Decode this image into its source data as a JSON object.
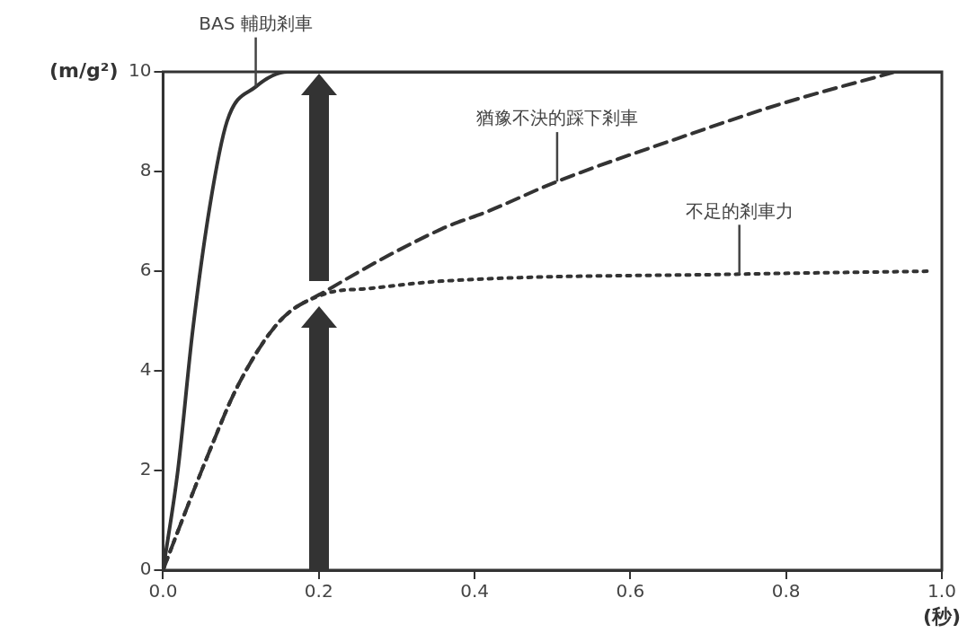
{
  "chart_data": {
    "type": "line",
    "xlabel": "(秒)",
    "ylabel": "(m/g²)",
    "xlim": [
      0,
      1
    ],
    "xticks": [
      {
        "value": 0,
        "label": "0.0"
      },
      {
        "value": 0.2,
        "label": "0.2"
      },
      {
        "value": 0.4,
        "label": "0.4"
      },
      {
        "value": 0.6,
        "label": "0.6"
      },
      {
        "value": 0.8,
        "label": "0.8"
      },
      {
        "value": 1,
        "label": "1.0"
      }
    ],
    "ylim": [
      0,
      10
    ],
    "yticks": [
      0,
      2,
      4,
      6,
      8,
      10
    ],
    "grid": false,
    "legend": false,
    "marker": "none",
    "series": [
      {
        "color": "#333333",
        "line_style": "solid",
        "x": [
          0,
          0.019,
          0.038,
          0.06,
          0.082,
          0.119,
          0.16,
          0.2,
          1
        ],
        "values": [
          0,
          2.0,
          4.8,
          7.3,
          9.0,
          9.7,
          10.0,
          10,
          10
        ]
      },
      {
        "color": "#333333",
        "line_style": "dashed",
        "x": [
          0,
          0.006,
          0.06,
          0.096,
          0.15,
          0.209,
          0.358,
          0.417,
          0.506,
          0.662,
          0.792,
          0.94
        ],
        "values": [
          0,
          0.25,
          2.4,
          3.7,
          5.0,
          5.6,
          6.85,
          7.2,
          7.8,
          8.67,
          9.35,
          10.0
        ]
      },
      {
        "color": "#333333",
        "line_style": "dotted",
        "x": [
          0,
          0.006,
          0.06,
          0.096,
          0.15,
          0.209,
          0.263,
          0.358,
          0.74,
          0.988
        ],
        "values": [
          0,
          0.25,
          2.4,
          3.7,
          5.0,
          5.55,
          5.65,
          5.8,
          5.94,
          6.0
        ]
      }
    ],
    "annotations": [
      {
        "text": "BAS 輔助剎車",
        "x": 0.119,
        "y": 9.7
      },
      {
        "text": "猶豫不決的踩下剎車",
        "x": 0.506,
        "y": 7.8
      },
      {
        "text": "不足的剎車力",
        "x": 0.74,
        "y": 5.94
      }
    ]
  }
}
